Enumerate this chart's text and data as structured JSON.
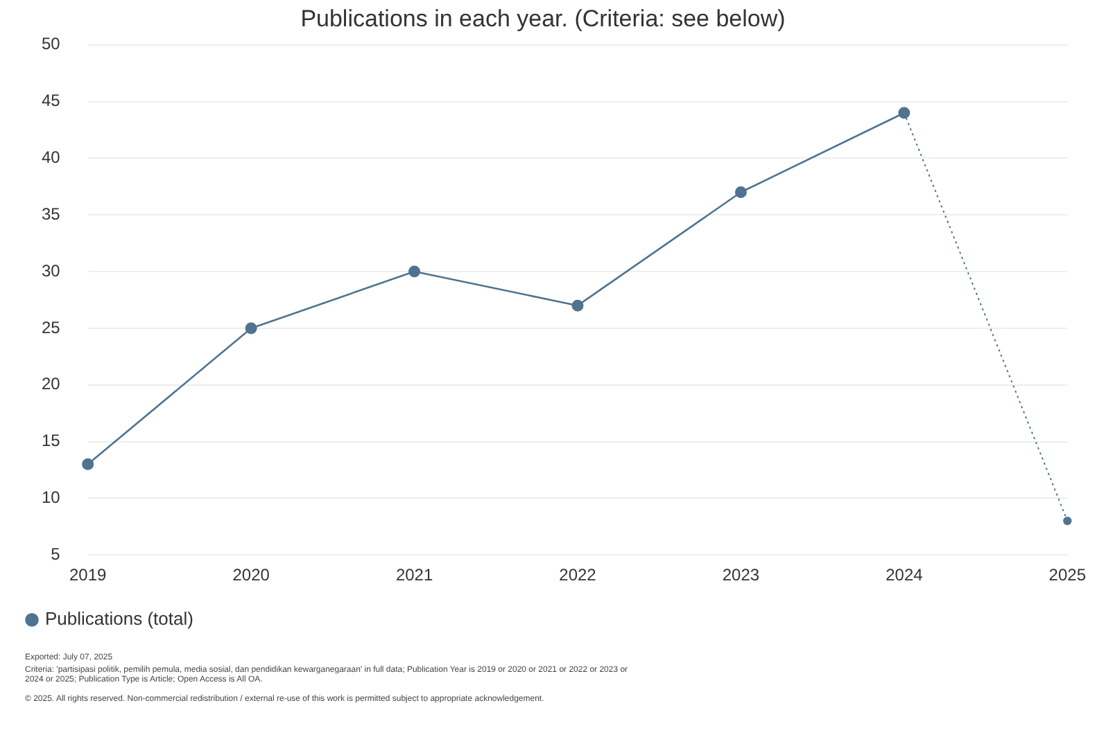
{
  "chart_data": {
    "type": "line",
    "title": "Publications in each year. (Criteria: see below)",
    "categories": [
      "2019",
      "2020",
      "2021",
      "2022",
      "2023",
      "2024",
      "2025"
    ],
    "series": [
      {
        "name": "Publications (total)",
        "color": "#4f7390",
        "values": [
          13,
          25,
          30,
          27,
          37,
          44,
          null
        ],
        "line_style": "solid"
      },
      {
        "color": "#4f7390",
        "values": [
          null,
          null,
          null,
          null,
          null,
          44,
          8
        ],
        "line_style": "dotted"
      }
    ],
    "ylim": [
      5,
      50
    ],
    "yticks": [
      5,
      10,
      15,
      20,
      25,
      30,
      35,
      40,
      45,
      50
    ],
    "grid": "y",
    "legend": "bottom left",
    "marker": "circle",
    "annotations": [
      "Exported: July 07, 2025",
      "Criteria: 'partisipasi politik, pemilih pemula, media sosial, dan pendidikan kewarganegaraan' in full data; Publication Year is 2019 or 2020 or 2021 or 2022 or 2023 or 2024 or 2025; Publication Type is Article; Open Access is All OA.",
      "© 2025. All rights reserved. Non-commercial redistribution / external re-use of this work is permitted subject to appropriate acknowledgement."
    ]
  }
}
